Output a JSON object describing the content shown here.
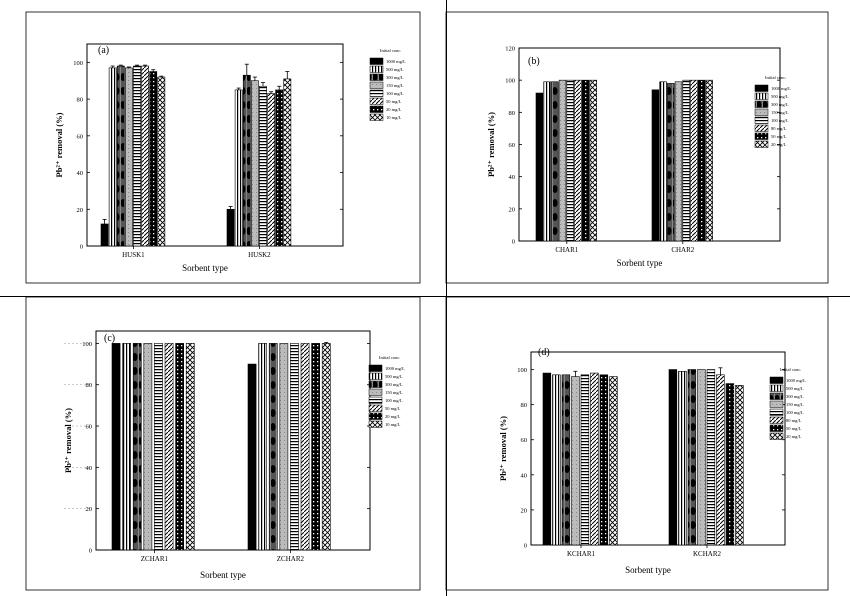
{
  "chart_data": [
    {
      "panel_label": "(a)",
      "type": "bar",
      "categories": [
        "HUSK1",
        "HUSK2"
      ],
      "ylim": [
        0,
        110
      ],
      "yticks": [
        0,
        20,
        40,
        60,
        80,
        100
      ],
      "ytick_labels": [
        "0",
        "20",
        "40",
        "60",
        "80",
        "100"
      ],
      "ylabel": "Pb²⁺ removal (%)",
      "xlabel": "Sorbent type",
      "legend_title": "Initial conc.",
      "legend_entries": [
        "1000 mg/L",
        "500 mg/L",
        "300 mg/L",
        "150 mg/L",
        "100 mg/L",
        "50 mg/L",
        "20 mg/L",
        "10 mg/L"
      ],
      "series": [
        {
          "name": "1000 mg/L",
          "values": [
            12,
            20
          ],
          "errors": [
            2.5,
            1.5
          ]
        },
        {
          "name": "500 mg/L",
          "values": [
            97,
            85
          ],
          "errors": [
            1,
            1
          ]
        },
        {
          "name": "300 mg/L",
          "values": [
            98,
            93
          ],
          "errors": [
            0.5,
            6
          ]
        },
        {
          "name": "150 mg/L",
          "values": [
            97,
            90
          ],
          "errors": [
            0.5,
            2
          ]
        },
        {
          "name": "100 mg/L",
          "values": [
            98,
            87
          ],
          "errors": [
            0.5,
            2
          ]
        },
        {
          "name": "50 mg/L",
          "values": [
            98,
            83
          ],
          "errors": [
            0.5,
            1
          ]
        },
        {
          "name": "20 mg/L",
          "values": [
            95,
            85
          ],
          "errors": [
            1,
            2
          ]
        },
        {
          "name": "10 mg/L",
          "values": [
            92,
            91
          ],
          "errors": [
            0.5,
            4
          ]
        }
      ]
    },
    {
      "panel_label": "(b)",
      "type": "bar",
      "categories": [
        "CHAR1",
        "CHAR2"
      ],
      "ylim": [
        0,
        120
      ],
      "yticks": [
        0,
        20,
        40,
        60,
        80,
        100,
        120
      ],
      "ytick_labels": [
        "0",
        "20",
        "40",
        "60",
        "80",
        "100",
        "120"
      ],
      "ylabel": "Pb²⁺ removal (%)",
      "xlabel": "Sorbent type",
      "legend_title": "Initial conc.",
      "legend_entries": [
        "1000 mg/L",
        "500 mg/L",
        "300 mg/L",
        "150 mg/L",
        "100 mg/L",
        "80 mg/L",
        "50 mg/L",
        "20 mg/L"
      ],
      "series": [
        {
          "name": "1000 mg/L",
          "values": [
            92,
            94
          ],
          "errors": [
            0,
            0
          ]
        },
        {
          "name": "500 mg/L",
          "values": [
            99,
            99
          ],
          "errors": [
            0,
            0
          ]
        },
        {
          "name": "300 mg/L",
          "values": [
            99,
            98
          ],
          "errors": [
            0,
            0
          ]
        },
        {
          "name": "150 mg/L",
          "values": [
            100,
            99
          ],
          "errors": [
            0,
            0
          ]
        },
        {
          "name": "100 mg/L",
          "values": [
            100,
            100
          ],
          "errors": [
            0,
            0
          ]
        },
        {
          "name": "80 mg/L",
          "values": [
            100,
            100
          ],
          "errors": [
            0,
            0
          ]
        },
        {
          "name": "50 mg/L",
          "values": [
            100,
            100
          ],
          "errors": [
            0,
            0
          ]
        },
        {
          "name": "20 mg/L",
          "values": [
            100,
            100
          ],
          "errors": [
            0,
            0
          ]
        }
      ]
    },
    {
      "panel_label": "(c)",
      "type": "bar",
      "categories": [
        "ZCHAR1",
        "ZCHAR2"
      ],
      "ylim": [
        0,
        106
      ],
      "yticks": [
        0,
        20,
        40,
        60,
        80,
        100
      ],
      "ytick_labels": [
        "0",
        "20",
        "40",
        "60",
        "80",
        "100"
      ],
      "ylabel": "Pb²⁺ removal (%)",
      "xlabel": "Sorbent type",
      "legend_title": "Initial conc.",
      "legend_entries": [
        "1000 mg/L",
        "500 mg/L",
        "300 mg/L",
        "150 mg/L",
        "100 mg/L",
        "50 mg/L",
        "20 mg/L",
        "10 mg/L"
      ],
      "series": [
        {
          "name": "1000 mg/L",
          "values": [
            100,
            90
          ],
          "errors": [
            0,
            0
          ]
        },
        {
          "name": "500 mg/L",
          "values": [
            100,
            100
          ],
          "errors": [
            0,
            0
          ]
        },
        {
          "name": "300 mg/L",
          "values": [
            100,
            100
          ],
          "errors": [
            0,
            0
          ]
        },
        {
          "name": "150 mg/L",
          "values": [
            100,
            100
          ],
          "errors": [
            0,
            0
          ]
        },
        {
          "name": "100 mg/L",
          "values": [
            100,
            100
          ],
          "errors": [
            0,
            0
          ]
        },
        {
          "name": "50 mg/L",
          "values": [
            100,
            100
          ],
          "errors": [
            0,
            0
          ]
        },
        {
          "name": "20 mg/L",
          "values": [
            100,
            100
          ],
          "errors": [
            0,
            0
          ]
        },
        {
          "name": "10 mg/L",
          "values": [
            100,
            100
          ],
          "errors": [
            0,
            0.5
          ]
        }
      ]
    },
    {
      "panel_label": "(d)",
      "type": "bar",
      "categories": [
        "KCHAR1",
        "KCHAR2"
      ],
      "ylim": [
        0,
        110
      ],
      "yticks": [
        0,
        20,
        40,
        60,
        80,
        100
      ],
      "ytick_labels": [
        "0",
        "20",
        "40",
        "60",
        "80",
        "100"
      ],
      "ylabel": "Pb²⁺ removal (%)",
      "xlabel": "Sorbent type",
      "legend_title": "Initial conc.",
      "legend_entries": [
        "1000 mg/L",
        "500 mg/L",
        "300 mg/L",
        "150 mg/L",
        "100 mg/L",
        "80 mg/L",
        "50 mg/L",
        "20 mg/L"
      ],
      "series": [
        {
          "name": "1000 mg/L",
          "values": [
            98,
            100
          ],
          "errors": [
            0,
            0
          ]
        },
        {
          "name": "500 mg/L",
          "values": [
            97,
            99
          ],
          "errors": [
            0,
            0
          ]
        },
        {
          "name": "300 mg/L",
          "values": [
            97,
            100
          ],
          "errors": [
            0,
            0
          ]
        },
        {
          "name": "150 mg/L",
          "values": [
            96,
            100
          ],
          "errors": [
            3,
            0
          ]
        },
        {
          "name": "100 mg/L",
          "values": [
            97,
            100
          ],
          "errors": [
            0,
            0
          ]
        },
        {
          "name": "80 mg/L",
          "values": [
            98,
            97
          ],
          "errors": [
            0,
            4
          ]
        },
        {
          "name": "50 mg/L",
          "values": [
            97,
            92
          ],
          "errors": [
            0,
            0
          ]
        },
        {
          "name": "20 mg/L",
          "values": [
            96,
            91
          ],
          "errors": [
            0,
            0
          ]
        }
      ]
    }
  ]
}
